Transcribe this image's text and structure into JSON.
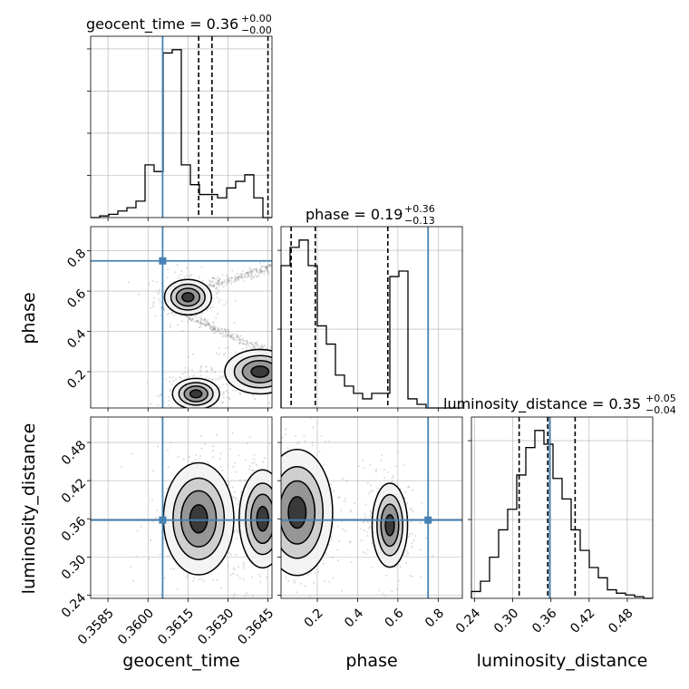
{
  "colors": {
    "truth": "#4682b4",
    "hist": "#000000",
    "grid": "#b0b0b0",
    "scatter": "#7f7f7f"
  },
  "titles": {
    "geocent_time": {
      "base": "geocent_time = 0.36",
      "sup": "+0.00",
      "sub": "−0.00"
    },
    "phase": {
      "base": "phase = 0.19",
      "sup": "+0.36",
      "sub": "−0.13"
    },
    "luminosity_distance": {
      "base": "luminosity_distance = 0.35",
      "sup": "+0.05",
      "sub": "−0.04"
    }
  },
  "axis_labels": {
    "geocent_time": "geocent_time",
    "phase": "phase",
    "luminosity_distance": "luminosity_distance"
  },
  "chart_data": [
    {
      "type": "histogram",
      "name": "geocent_time marginal",
      "xlim": [
        0.35785,
        0.36465
      ],
      "bin_edges": [
        0.35785,
        0.35819,
        0.35853,
        0.35887,
        0.35921,
        0.35955,
        0.35989,
        0.36023,
        0.36057,
        0.36091,
        0.36125,
        0.36159,
        0.36193,
        0.36227,
        0.36261,
        0.36295,
        0.36329,
        0.36363,
        0.36397,
        0.36431,
        0.36465
      ],
      "counts": [
        0.0,
        0.01,
        0.02,
        0.04,
        0.06,
        0.1,
        0.32,
        0.28,
        1.0,
        1.02,
        0.32,
        0.2,
        0.14,
        0.14,
        0.12,
        0.18,
        0.22,
        0.26,
        0.12,
        0.0
      ],
      "quantiles": [
        0.3619,
        0.3624,
        0.3645
      ],
      "truth": 0.36055,
      "xticks": [
        "0.3585",
        "0.3600",
        "0.3615",
        "0.3630",
        "0.3645"
      ],
      "xtick_values": [
        0.3585,
        0.36,
        0.3615,
        0.363,
        0.3645
      ]
    },
    {
      "type": "histogram",
      "name": "phase marginal",
      "xlim": [
        0.02,
        0.92
      ],
      "bin_edges": [
        0.02,
        0.065,
        0.11,
        0.155,
        0.2,
        0.245,
        0.29,
        0.335,
        0.38,
        0.425,
        0.47,
        0.515,
        0.56,
        0.605,
        0.65,
        0.695,
        0.74,
        0.785,
        0.83,
        0.875,
        0.92
      ],
      "counts": [
        0.78,
        0.88,
        0.92,
        0.78,
        0.45,
        0.35,
        0.18,
        0.12,
        0.08,
        0.05,
        0.08,
        0.08,
        0.72,
        0.75,
        0.05,
        0.02,
        0.0,
        0.0,
        0.0,
        0.0
      ],
      "quantiles": [
        0.07,
        0.19,
        0.55
      ],
      "truth": 0.75,
      "xticks": [
        "0.2",
        "0.4",
        "0.6",
        "0.8"
      ],
      "xtick_values": [
        0.2,
        0.4,
        0.6,
        0.8
      ]
    },
    {
      "type": "histogram",
      "name": "luminosity_distance marginal",
      "xlim": [
        0.235,
        0.52
      ],
      "bin_edges": [
        0.235,
        0.24925,
        0.2635,
        0.27775,
        0.292,
        0.30625,
        0.3205,
        0.33475,
        0.349,
        0.36325,
        0.3775,
        0.39175,
        0.406,
        0.42025,
        0.4345,
        0.44875,
        0.463,
        0.47725,
        0.4915,
        0.50575,
        0.52
      ],
      "counts": [
        0.04,
        0.1,
        0.24,
        0.4,
        0.52,
        0.72,
        0.88,
        0.98,
        0.9,
        0.7,
        0.58,
        0.4,
        0.28,
        0.18,
        0.12,
        0.05,
        0.03,
        0.02,
        0.01,
        0.0
      ],
      "quantiles": [
        0.31,
        0.355,
        0.398
      ],
      "truth": 0.358,
      "xticks": [
        "0.24",
        "0.30",
        "0.36",
        "0.42",
        "0.48"
      ],
      "xtick_values": [
        0.24,
        0.3,
        0.36,
        0.42,
        0.48
      ]
    },
    {
      "type": "contour2d",
      "name": "phase vs geocent_time",
      "x_param": "geocent_time",
      "y_param": "phase",
      "xlim": [
        0.35785,
        0.36465
      ],
      "ylim": [
        0.02,
        0.92
      ],
      "yticks": [
        "0.2",
        "0.4",
        "0.6",
        "0.8"
      ],
      "ytick_values": [
        0.2,
        0.4,
        0.6,
        0.8
      ],
      "truth": [
        0.36055,
        0.75
      ],
      "modes": [
        {
          "cx": 0.3615,
          "cy": 0.57,
          "sx": 0.0004,
          "sy": 0.04
        },
        {
          "cx": 0.3618,
          "cy": 0.09,
          "sx": 0.0004,
          "sy": 0.035
        },
        {
          "cx": 0.3642,
          "cy": 0.2,
          "sx": 0.0006,
          "sy": 0.05
        }
      ],
      "arc": {
        "from": [
          0.3614,
          0.48
        ],
        "to": [
          0.3646,
          0.29
        ],
        "from2": [
          0.3618,
          0.6
        ],
        "to2": [
          0.3646,
          0.72
        ]
      }
    },
    {
      "type": "contour2d",
      "name": "luminosity_distance vs geocent_time",
      "x_param": "geocent_time",
      "y_param": "luminosity_distance",
      "xlim": [
        0.35785,
        0.36465
      ],
      "ylim": [
        0.235,
        0.52
      ],
      "yticks": [
        "0.24",
        "0.30",
        "0.36",
        "0.42",
        "0.48"
      ],
      "ytick_values": [
        0.24,
        0.3,
        0.36,
        0.42,
        0.48
      ],
      "truth": [
        0.36055,
        0.358
      ],
      "modes": [
        {
          "cx": 0.3619,
          "cy": 0.36,
          "sx": 0.0006,
          "sy": 0.04
        },
        {
          "cx": 0.3643,
          "cy": 0.36,
          "sx": 0.0004,
          "sy": 0.035
        }
      ]
    },
    {
      "type": "contour2d",
      "name": "luminosity_distance vs phase",
      "x_param": "phase",
      "y_param": "luminosity_distance",
      "xlim": [
        0.02,
        0.92
      ],
      "ylim": [
        0.235,
        0.52
      ],
      "truth": [
        0.75,
        0.358
      ],
      "modes": [
        {
          "cx": 0.1,
          "cy": 0.37,
          "sx": 0.08,
          "sy": 0.045
        },
        {
          "cx": 0.56,
          "cy": 0.35,
          "sx": 0.04,
          "sy": 0.03
        }
      ]
    }
  ]
}
